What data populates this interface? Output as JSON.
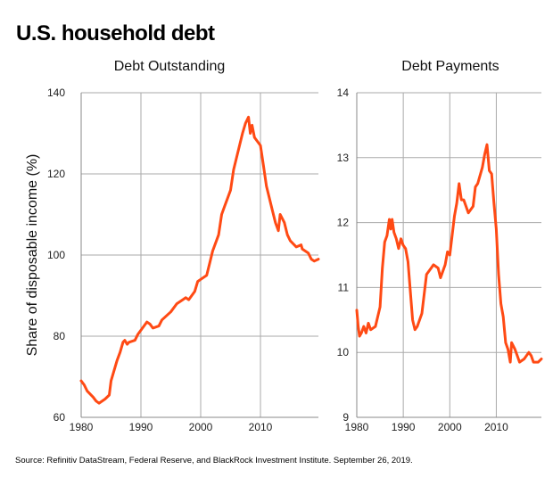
{
  "title": "U.S. household debt",
  "source": "Source: Refinitiv DataStream, Federal Reserve, and BlackRock Investment Institute. September 26, 2019.",
  "colors": {
    "line": "#ff4a14",
    "grid": "#aaaaaa"
  },
  "chart_data": [
    {
      "type": "line",
      "title": "Debt Outstanding",
      "ylabel": "Share of disposable income (%)",
      "xlabel": "",
      "xlim": [
        1980,
        2019.7
      ],
      "ylim": [
        60,
        140
      ],
      "xticks": [
        "1980",
        "1990",
        "2000",
        "2010"
      ],
      "yticks": [
        "60",
        "80",
        "100",
        "120",
        "140"
      ],
      "grid": true,
      "x": [
        1980,
        1980.5,
        1981,
        1982,
        1982.5,
        1983,
        1984,
        1984.7,
        1985,
        1986,
        1986.5,
        1987,
        1987.3,
        1987.7,
        1988,
        1989,
        1989.5,
        1990,
        1991,
        1991.5,
        1992,
        1993,
        1993.5,
        1995,
        1996,
        1997,
        1997.5,
        1998,
        1999,
        1999.5,
        2000,
        2001,
        2001.5,
        2002,
        2003,
        2003.5,
        2004,
        2005,
        2005.5,
        2006,
        2007,
        2007.5,
        2008,
        2008.3,
        2008.6,
        2009,
        2010,
        2010.5,
        2011,
        2012,
        2012.5,
        2013,
        2013.3,
        2014,
        2014.5,
        2015,
        2016,
        2016.8,
        2017,
        2018,
        2018.5,
        2019,
        2019.7
      ],
      "y": [
        69,
        68,
        66.5,
        65,
        64,
        63.5,
        64.5,
        65.5,
        69,
        74,
        76,
        78.5,
        79,
        78,
        78.5,
        79,
        80.5,
        81.5,
        83.5,
        83,
        82,
        82.5,
        84,
        86,
        88,
        89,
        89.5,
        89,
        91,
        93.5,
        94,
        95,
        98,
        101,
        105,
        110,
        112,
        116,
        121,
        124,
        130,
        132.5,
        134,
        130,
        132,
        129,
        127,
        122,
        117,
        111,
        108,
        106,
        110,
        108,
        105,
        103.5,
        102,
        102.5,
        101.5,
        100.5,
        99,
        98.5,
        99
      ]
    },
    {
      "type": "line",
      "title": "Debt Payments",
      "ylabel": "",
      "xlabel": "",
      "xlim": [
        1980,
        2019.7
      ],
      "ylim": [
        9,
        14
      ],
      "xticks": [
        "1980",
        "1990",
        "2000",
        "2010"
      ],
      "yticks": [
        "9",
        "10",
        "11",
        "12",
        "13",
        "14"
      ],
      "grid": true,
      "x": [
        1980,
        1980.3,
        1980.6,
        1981,
        1981.5,
        1982,
        1982.5,
        1983,
        1984,
        1985,
        1985.5,
        1986,
        1986.5,
        1987,
        1987.3,
        1987.6,
        1988,
        1988.5,
        1989,
        1989.5,
        1990,
        1990.5,
        1991,
        1992,
        1992.5,
        1993,
        1994,
        1995,
        1996,
        1996.5,
        1997.5,
        1998,
        1999,
        1999.5,
        2000,
        2001,
        2001.5,
        2002,
        2002.5,
        2003,
        2004,
        2005,
        2005.5,
        2006,
        2007,
        2007.5,
        2008,
        2008.5,
        2009,
        2009.5,
        2010,
        2010.5,
        2011,
        2011.5,
        2012,
        2012.5,
        2013,
        2013.3,
        2014,
        2014.5,
        2015,
        2016,
        2016.5,
        2017,
        2017.5,
        2018,
        2019,
        2019.7
      ],
      "y": [
        10.65,
        10.4,
        10.25,
        10.3,
        10.4,
        10.3,
        10.45,
        10.35,
        10.4,
        10.7,
        11.3,
        11.7,
        11.8,
        12.05,
        11.9,
        12.05,
        11.85,
        11.75,
        11.6,
        11.75,
        11.65,
        11.6,
        11.4,
        10.5,
        10.35,
        10.4,
        10.6,
        11.2,
        11.3,
        11.35,
        11.3,
        11.15,
        11.35,
        11.55,
        11.5,
        12.1,
        12.3,
        12.6,
        12.35,
        12.35,
        12.15,
        12.25,
        12.55,
        12.6,
        12.85,
        13.05,
        13.2,
        12.8,
        12.75,
        12.3,
        11.9,
        11.2,
        10.75,
        10.55,
        10.15,
        10.05,
        9.85,
        10.15,
        10.05,
        9.95,
        9.85,
        9.9,
        9.95,
        10.0,
        9.95,
        9.85,
        9.85,
        9.9
      ]
    }
  ]
}
